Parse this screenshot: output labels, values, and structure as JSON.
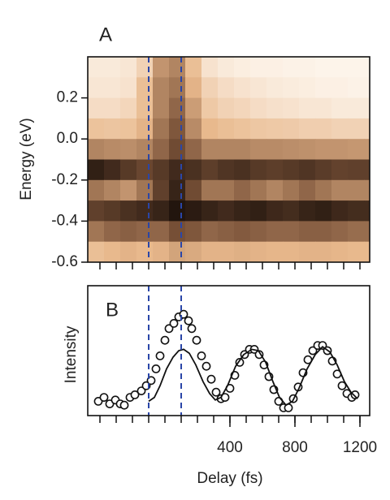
{
  "chart_data": [
    {
      "type": "heatmap",
      "label": "A",
      "ylabel": "Energy (eV)",
      "xlim": [
        -475,
        1260
      ],
      "ylim": [
        -0.6,
        0.4
      ],
      "yticks": [
        0.2,
        {
          "value": 0,
          "label": "0.0"
        },
        -0.2,
        -0.4,
        -0.6
      ],
      "xminorticks": [
        -400,
        -300,
        -200,
        -100,
        0,
        100,
        200,
        300,
        400,
        500,
        600,
        700,
        800,
        900,
        1000,
        1100,
        1200
      ],
      "vlines": [
        -100,
        100
      ],
      "vline_color": "#2a46a8",
      "colormap": [
        "#fffaf3",
        "#e8b88c",
        "#7a5238",
        "#120a06"
      ],
      "x": [
        -425,
        -325,
        -225,
        -125,
        -25,
        75,
        175,
        275,
        375,
        475,
        575,
        675,
        775,
        875,
        975,
        1075,
        1175,
        1275
      ],
      "y": [
        0.35,
        0.25,
        0.15,
        0.05,
        -0.05,
        -0.15,
        -0.25,
        -0.35,
        -0.45,
        -0.55
      ],
      "z": [
        [
          0.08,
          0.08,
          0.1,
          0.2,
          0.45,
          0.5,
          0.3,
          0.12,
          0.08,
          0.06,
          0.05,
          0.05,
          0.04,
          0.04,
          0.03,
          0.03,
          0.03,
          0.03
        ],
        [
          0.1,
          0.1,
          0.12,
          0.3,
          0.5,
          0.55,
          0.35,
          0.2,
          0.15,
          0.12,
          0.1,
          0.08,
          0.07,
          0.06,
          0.05,
          0.05,
          0.04,
          0.04
        ],
        [
          0.15,
          0.15,
          0.18,
          0.3,
          0.5,
          0.6,
          0.42,
          0.25,
          0.2,
          0.18,
          0.15,
          0.13,
          0.12,
          0.1,
          0.1,
          0.08,
          0.08,
          0.08
        ],
        [
          0.28,
          0.27,
          0.28,
          0.35,
          0.55,
          0.65,
          0.48,
          0.33,
          0.3,
          0.28,
          0.26,
          0.25,
          0.24,
          0.22,
          0.22,
          0.2,
          0.2,
          0.2
        ],
        [
          0.5,
          0.48,
          0.47,
          0.5,
          0.6,
          0.7,
          0.6,
          0.5,
          0.5,
          0.5,
          0.48,
          0.48,
          0.47,
          0.46,
          0.45,
          0.45,
          0.44,
          0.44
        ],
        [
          0.9,
          0.85,
          0.78,
          0.72,
          0.78,
          0.85,
          0.82,
          0.76,
          0.8,
          0.82,
          0.78,
          0.76,
          0.78,
          0.8,
          0.77,
          0.74,
          0.75,
          0.75
        ],
        [
          0.55,
          0.5,
          0.45,
          0.55,
          0.75,
          0.88,
          0.7,
          0.55,
          0.55,
          0.6,
          0.55,
          0.5,
          0.55,
          0.6,
          0.55,
          0.5,
          0.5,
          0.5
        ],
        [
          0.75,
          0.78,
          0.82,
          0.85,
          0.88,
          0.95,
          0.92,
          0.88,
          0.85,
          0.88,
          0.9,
          0.86,
          0.84,
          0.88,
          0.9,
          0.86,
          0.84,
          0.84
        ],
        [
          0.55,
          0.6,
          0.62,
          0.6,
          0.6,
          0.68,
          0.65,
          0.6,
          0.62,
          0.64,
          0.62,
          0.6,
          0.6,
          0.62,
          0.62,
          0.6,
          0.58,
          0.58
        ],
        [
          0.3,
          0.33,
          0.35,
          0.33,
          0.35,
          0.4,
          0.38,
          0.35,
          0.35,
          0.36,
          0.35,
          0.34,
          0.34,
          0.35,
          0.35,
          0.34,
          0.33,
          0.33
        ]
      ]
    },
    {
      "type": "scatter",
      "label": "B",
      "ylabel": "Intensity",
      "xlabel": "Delay (fs)",
      "xlim": [
        -475,
        1260
      ],
      "ylim": [
        0,
        1
      ],
      "xticks": [
        400,
        800,
        1200
      ],
      "yticks": [],
      "xminorticks": [
        -400,
        -300,
        -200,
        -100,
        0,
        100,
        200,
        300,
        400,
        500,
        600,
        700,
        800,
        900,
        1000,
        1100,
        1200
      ],
      "vlines": [
        -100,
        100
      ],
      "vline_color": "#2a46a8",
      "series": [
        {
          "mode": "markers",
          "color": "#111111",
          "x": [
            -410,
            -375,
            -340,
            -305,
            -275,
            -250,
            -215,
            -185,
            -145,
            -115,
            -85,
            -55,
            -30,
            0,
            25,
            55,
            85,
            115,
            145,
            165,
            195,
            225,
            255,
            285,
            315,
            345,
            370,
            400,
            430,
            460,
            490,
            520,
            550,
            580,
            610,
            640,
            670,
            700,
            730,
            760,
            790,
            820,
            850,
            880,
            910,
            940,
            970,
            1000,
            1030,
            1060,
            1090,
            1120,
            1150,
            1170
          ],
          "values": [
            0.11,
            0.14,
            0.09,
            0.12,
            0.09,
            0.08,
            0.14,
            0.16,
            0.19,
            0.23,
            0.27,
            0.36,
            0.46,
            0.58,
            0.67,
            0.71,
            0.76,
            0.78,
            0.73,
            0.67,
            0.58,
            0.46,
            0.38,
            0.28,
            0.18,
            0.13,
            0.14,
            0.21,
            0.31,
            0.41,
            0.47,
            0.51,
            0.51,
            0.47,
            0.39,
            0.3,
            0.2,
            0.11,
            0.06,
            0.06,
            0.13,
            0.22,
            0.33,
            0.43,
            0.5,
            0.54,
            0.54,
            0.5,
            0.42,
            0.32,
            0.23,
            0.17,
            0.14,
            0.16
          ]
        },
        {
          "mode": "line",
          "color": "#111111",
          "x": [
            -100,
            -65,
            -30,
            10,
            50,
            85,
            115,
            150,
            190,
            235,
            275,
            310,
            345,
            385,
            435,
            485,
            535,
            575,
            620,
            665,
            705,
            745,
            785,
            825,
            875,
            925,
            970,
            1015,
            1060,
            1105,
            1145,
            1185
          ],
          "values": [
            0.11,
            0.14,
            0.23,
            0.36,
            0.45,
            0.5,
            0.51,
            0.48,
            0.39,
            0.26,
            0.17,
            0.12,
            0.14,
            0.23,
            0.38,
            0.47,
            0.51,
            0.5,
            0.41,
            0.26,
            0.14,
            0.08,
            0.11,
            0.21,
            0.36,
            0.47,
            0.53,
            0.49,
            0.39,
            0.26,
            0.18,
            0.13
          ]
        }
      ]
    }
  ]
}
